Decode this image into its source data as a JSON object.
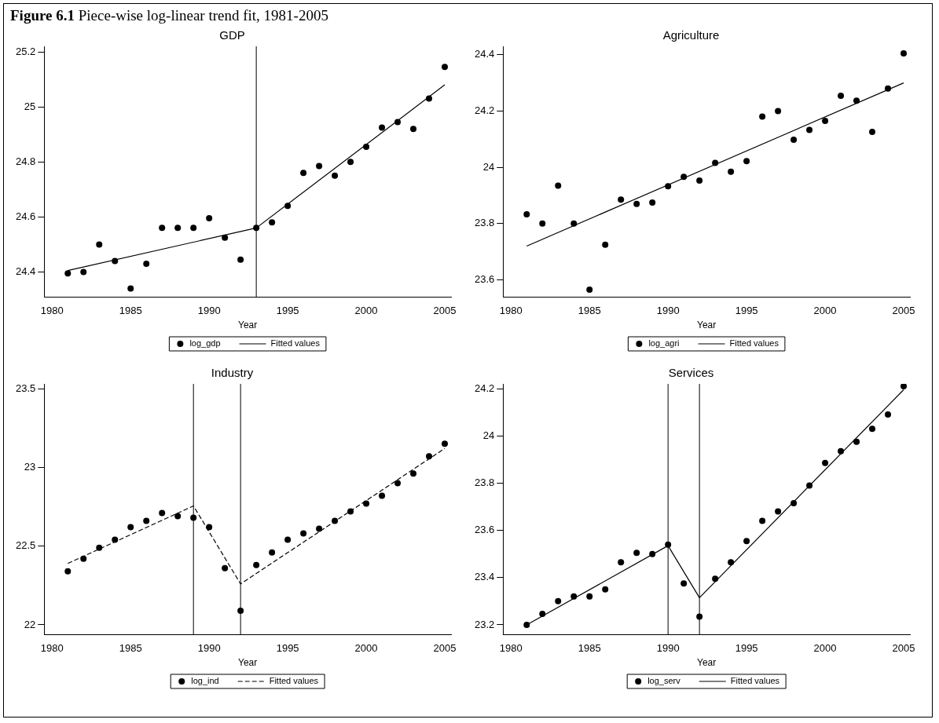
{
  "chart_data": [
    {
      "type": "scatter",
      "title": "GDP",
      "xlabel": "Year",
      "annotations": [
        "Figure 6.1 Piece-wise log-linear trend fit, 1981-2005"
      ],
      "x": [
        1981,
        1982,
        1983,
        1984,
        1985,
        1986,
        1987,
        1988,
        1989,
        1990,
        1991,
        1992,
        1993,
        1994,
        1995,
        1996,
        1997,
        1998,
        1999,
        2000,
        2001,
        2002,
        2003,
        2004,
        2005
      ],
      "series": [
        {
          "name": "log_gdp",
          "type": "scatter",
          "color": "#000000",
          "marker": "circle",
          "values": [
            24.395,
            24.4,
            24.5,
            24.44,
            24.34,
            24.43,
            24.56,
            24.56,
            24.56,
            24.595,
            24.525,
            24.445,
            24.56,
            24.58,
            24.64,
            24.76,
            24.785,
            24.75,
            24.8,
            24.855,
            24.925,
            24.945,
            24.92,
            25.03,
            25.145
          ]
        },
        {
          "name": "Fitted values",
          "type": "line",
          "color": "#000000",
          "marker": "none",
          "line_style": "solid",
          "x": [
            1981,
            1993,
            2005
          ],
          "values": [
            24.405,
            24.56,
            25.08
          ]
        }
      ],
      "xlim": [
        1979.5,
        2005.4
      ],
      "xticks": [
        1980,
        1985,
        1990,
        1995,
        2000,
        2005
      ],
      "ylim": [
        24.31,
        25.22
      ],
      "yticks": [
        24.4,
        24.6,
        24.8,
        25,
        25.2
      ],
      "ref_lines": [
        {
          "axis": "x",
          "value": 1993,
          "color": "#000000"
        }
      ],
      "grid": false,
      "legend": "bottom"
    },
    {
      "type": "scatter",
      "title": "Agriculture",
      "xlabel": "Year",
      "x": [
        1981,
        1982,
        1983,
        1984,
        1985,
        1986,
        1987,
        1988,
        1989,
        1990,
        1991,
        1992,
        1993,
        1994,
        1995,
        1996,
        1997,
        1998,
        1999,
        2000,
        2001,
        2002,
        2003,
        2004,
        2005
      ],
      "series": [
        {
          "name": "log_agri",
          "type": "scatter",
          "color": "#000000",
          "marker": "circle",
          "values": [
            23.833,
            23.8,
            23.935,
            23.8,
            23.565,
            23.725,
            23.885,
            23.87,
            23.875,
            23.933,
            23.966,
            23.953,
            24.016,
            23.984,
            24.022,
            24.18,
            24.2,
            24.098,
            24.133,
            24.165,
            24.254,
            24.237,
            24.126,
            24.28,
            24.405
          ]
        },
        {
          "name": "Fitted values",
          "type": "line",
          "color": "#000000",
          "marker": "none",
          "line_style": "solid",
          "x": [
            1981,
            2005
          ],
          "values": [
            23.72,
            24.3
          ]
        }
      ],
      "xlim": [
        1979.5,
        2005.4
      ],
      "xticks": [
        1980,
        1985,
        1990,
        1995,
        2000,
        2005
      ],
      "ylim": [
        23.54,
        24.43
      ],
      "yticks": [
        23.6,
        23.8,
        24,
        24.2,
        24.4
      ],
      "grid": false,
      "legend": "bottom"
    },
    {
      "type": "scatter",
      "title": "Industry",
      "xlabel": "Year",
      "x": [
        1981,
        1982,
        1983,
        1984,
        1985,
        1986,
        1987,
        1988,
        1989,
        1990,
        1991,
        1992,
        1993,
        1994,
        1995,
        1996,
        1997,
        1998,
        1999,
        2000,
        2001,
        2002,
        2003,
        2004,
        2005
      ],
      "series": [
        {
          "name": "log_ind",
          "type": "scatter",
          "color": "#000000",
          "marker": "circle",
          "values": [
            22.34,
            22.42,
            22.49,
            22.54,
            22.62,
            22.66,
            22.71,
            22.69,
            22.68,
            22.62,
            22.36,
            22.09,
            22.38,
            22.46,
            22.54,
            22.58,
            22.61,
            22.66,
            22.72,
            22.77,
            22.82,
            22.9,
            22.96,
            23.07,
            23.15
          ]
        },
        {
          "name": "Fitted values",
          "type": "line",
          "color": "#000000",
          "marker": "none",
          "line_style": "dashed",
          "x": [
            1981,
            1989,
            1992,
            2005
          ],
          "values": [
            22.39,
            22.755,
            22.26,
            23.12
          ]
        }
      ],
      "xlim": [
        1979.5,
        2005.4
      ],
      "xticks": [
        1980,
        1985,
        1990,
        1995,
        2000,
        2005
      ],
      "ylim": [
        21.94,
        23.53
      ],
      "yticks": [
        22,
        22.5,
        23,
        23.5
      ],
      "ref_lines": [
        {
          "axis": "x",
          "value": 1989,
          "color": "#000000"
        },
        {
          "axis": "x",
          "value": 1992,
          "color": "#000000"
        }
      ],
      "grid": false,
      "legend": "bottom"
    },
    {
      "type": "scatter",
      "title": "Services",
      "xlabel": "Year",
      "x": [
        1981,
        1982,
        1983,
        1984,
        1985,
        1986,
        1987,
        1988,
        1989,
        1990,
        1991,
        1992,
        1993,
        1994,
        1995,
        1996,
        1997,
        1998,
        1999,
        2000,
        2001,
        2002,
        2003,
        2004,
        2005
      ],
      "series": [
        {
          "name": "log_serv",
          "type": "scatter",
          "color": "#000000",
          "marker": "circle",
          "values": [
            23.2,
            23.246,
            23.3,
            23.32,
            23.32,
            23.35,
            23.465,
            23.505,
            23.5,
            23.54,
            23.375,
            23.235,
            23.395,
            23.465,
            23.555,
            23.64,
            23.68,
            23.715,
            23.79,
            23.885,
            23.935,
            23.975,
            24.03,
            24.09,
            24.21
          ]
        },
        {
          "name": "Fitted values",
          "type": "line",
          "color": "#000000",
          "marker": "none",
          "line_style": "solid",
          "x": [
            1981,
            1990,
            1992,
            2005
          ],
          "values": [
            23.2,
            23.535,
            23.315,
            24.195
          ]
        }
      ],
      "xlim": [
        1979.5,
        2005.4
      ],
      "xticks": [
        1980,
        1985,
        1990,
        1995,
        2000,
        2005
      ],
      "ylim": [
        23.16,
        24.22
      ],
      "yticks": [
        23.2,
        23.4,
        23.6,
        23.8,
        24,
        24.2
      ],
      "ref_lines": [
        {
          "axis": "x",
          "value": 1990,
          "color": "#000000"
        },
        {
          "axis": "x",
          "value": 1992,
          "color": "#000000"
        }
      ],
      "grid": false,
      "legend": "bottom"
    }
  ]
}
